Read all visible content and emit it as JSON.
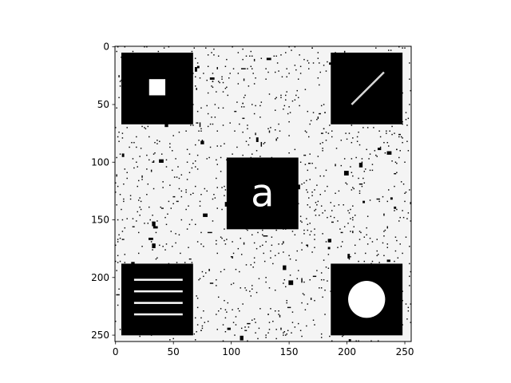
{
  "chart_data": {
    "type": "heatmap",
    "title": "",
    "xlabel": "",
    "ylabel": "",
    "image_size": [
      256,
      256
    ],
    "xlim": [
      -0.5,
      255.5
    ],
    "ylim": [
      255.5,
      -0.5
    ],
    "x_ticks": [
      0,
      50,
      100,
      150,
      200,
      250
    ],
    "y_ticks": [
      0,
      50,
      100,
      150,
      200,
      250
    ],
    "x_tick_labels": [
      "0",
      "50",
      "100",
      "150",
      "200",
      "250"
    ],
    "y_tick_labels": [
      "0",
      "50",
      "100",
      "150",
      "200",
      "250"
    ],
    "colormap": "gray",
    "background_value": "white",
    "noise": "black and white speckle",
    "boxes": [
      {
        "name": "top-left-box",
        "x0": 5,
        "y0": 5,
        "x1": 67,
        "y1": 67,
        "content": "white square",
        "cx": 36,
        "cy": 35,
        "half": 7
      },
      {
        "name": "top-right-box",
        "x0": 186,
        "y0": 5,
        "x1": 248,
        "y1": 67,
        "content": "diagonal line",
        "line": [
          [
            204,
            50
          ],
          [
            232,
            22
          ]
        ]
      },
      {
        "name": "center-box",
        "x0": 96,
        "y0": 96,
        "x1": 158,
        "y1": 158,
        "content": "letter",
        "letter": "a",
        "cx": 127,
        "cy": 127
      },
      {
        "name": "bottom-left-box",
        "x0": 5,
        "y0": 188,
        "x1": 67,
        "y1": 250,
        "content": "horizontal lines",
        "line_ys": [
          202,
          212,
          222,
          232
        ],
        "line_x": [
          16,
          58
        ]
      },
      {
        "name": "bottom-right-box",
        "x0": 186,
        "y0": 188,
        "x1": 248,
        "y1": 250,
        "content": "white circle",
        "cx": 217,
        "cy": 219,
        "r": 16
      }
    ]
  }
}
